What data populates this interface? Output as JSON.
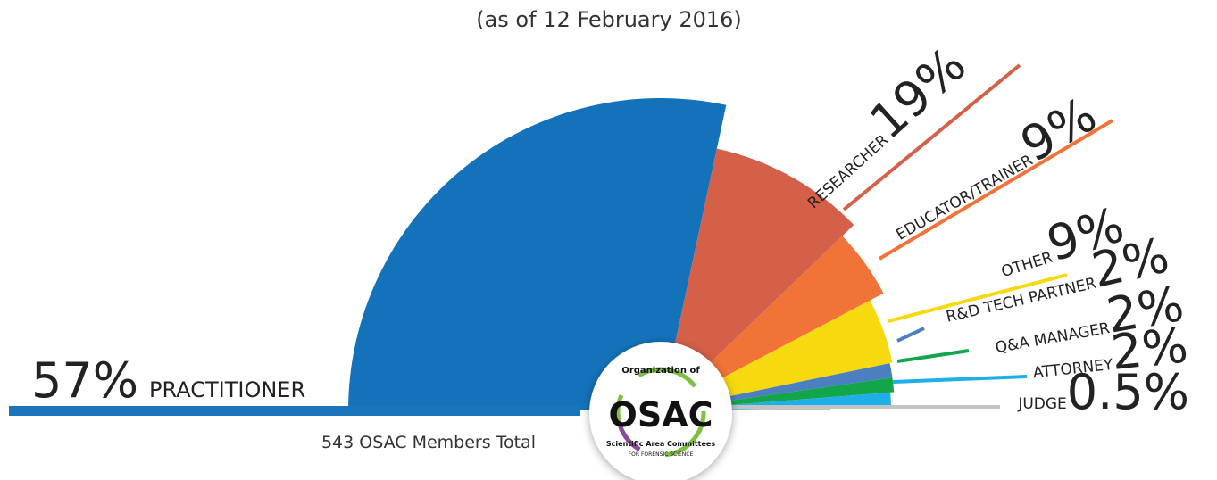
{
  "chart_data": {
    "type": "pie",
    "subtitle": "(as of 12 February 2016)",
    "note": "543 OSAC Members Total",
    "categories": [
      "PRACTITIONER",
      "RESEARCHER",
      "EDUCATOR/TRAINER",
      "OTHER",
      "R&D TECH PARTNER",
      "Q&A MANAGER",
      "ATTORNEY",
      "JUDGE"
    ],
    "values": [
      57,
      19,
      9,
      9,
      2,
      2,
      2,
      0.5
    ],
    "value_labels": [
      "57%",
      "19%",
      "9%",
      "9%",
      "2%",
      "2%",
      "2%",
      "0.5%"
    ],
    "colors": [
      "#1472bb",
      "#d5604a",
      "#f27338",
      "#f6d90f",
      "#4c7fc0",
      "#12a54a",
      "#1eaee8",
      "#c3c3c3"
    ]
  },
  "logo": {
    "top": "Organization of",
    "name": "OSAC",
    "bottom": "Scientific Area Committees",
    "sub": "FOR FORENSIC SCIENCE"
  }
}
